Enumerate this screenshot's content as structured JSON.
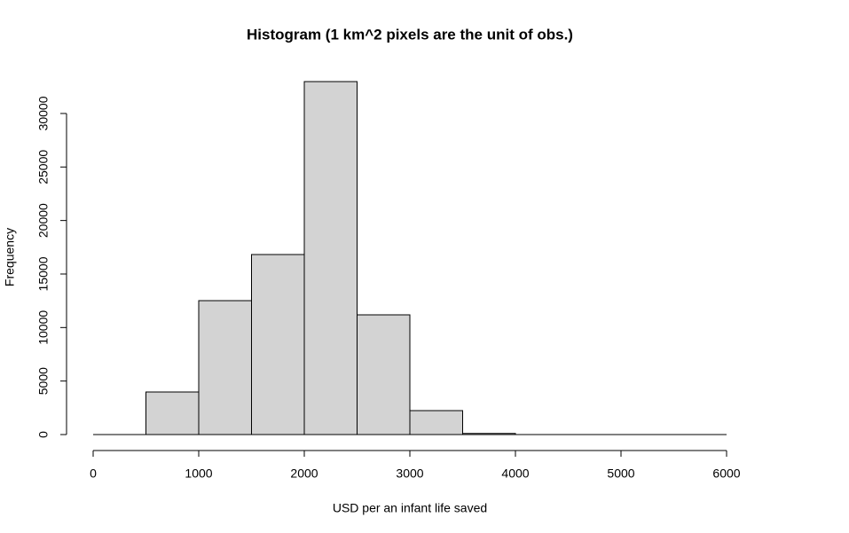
{
  "chart_data": {
    "type": "histogram",
    "title": "Histogram (1 km^2 pixels are the unit of obs.)",
    "x_label": "USD per an infant life saved",
    "y_label": "Frequency",
    "bins": [
      0,
      500,
      1000,
      1500,
      2000,
      2500,
      3000,
      3500,
      4000,
      4500,
      5000,
      5500,
      6000
    ],
    "values": [
      0,
      3980,
      12510,
      16820,
      32980,
      11190,
      2240,
      100,
      0,
      0,
      0,
      0
    ],
    "color": "#d3d3d3",
    "xlim": [
      0,
      6000
    ],
    "xticks": [
      0,
      1000,
      2000,
      3000,
      4000,
      5000,
      6000
    ],
    "ylim": [
      0,
      32980
    ],
    "yticks": [
      0,
      5000,
      10000,
      15000,
      20000,
      25000,
      30000
    ]
  }
}
